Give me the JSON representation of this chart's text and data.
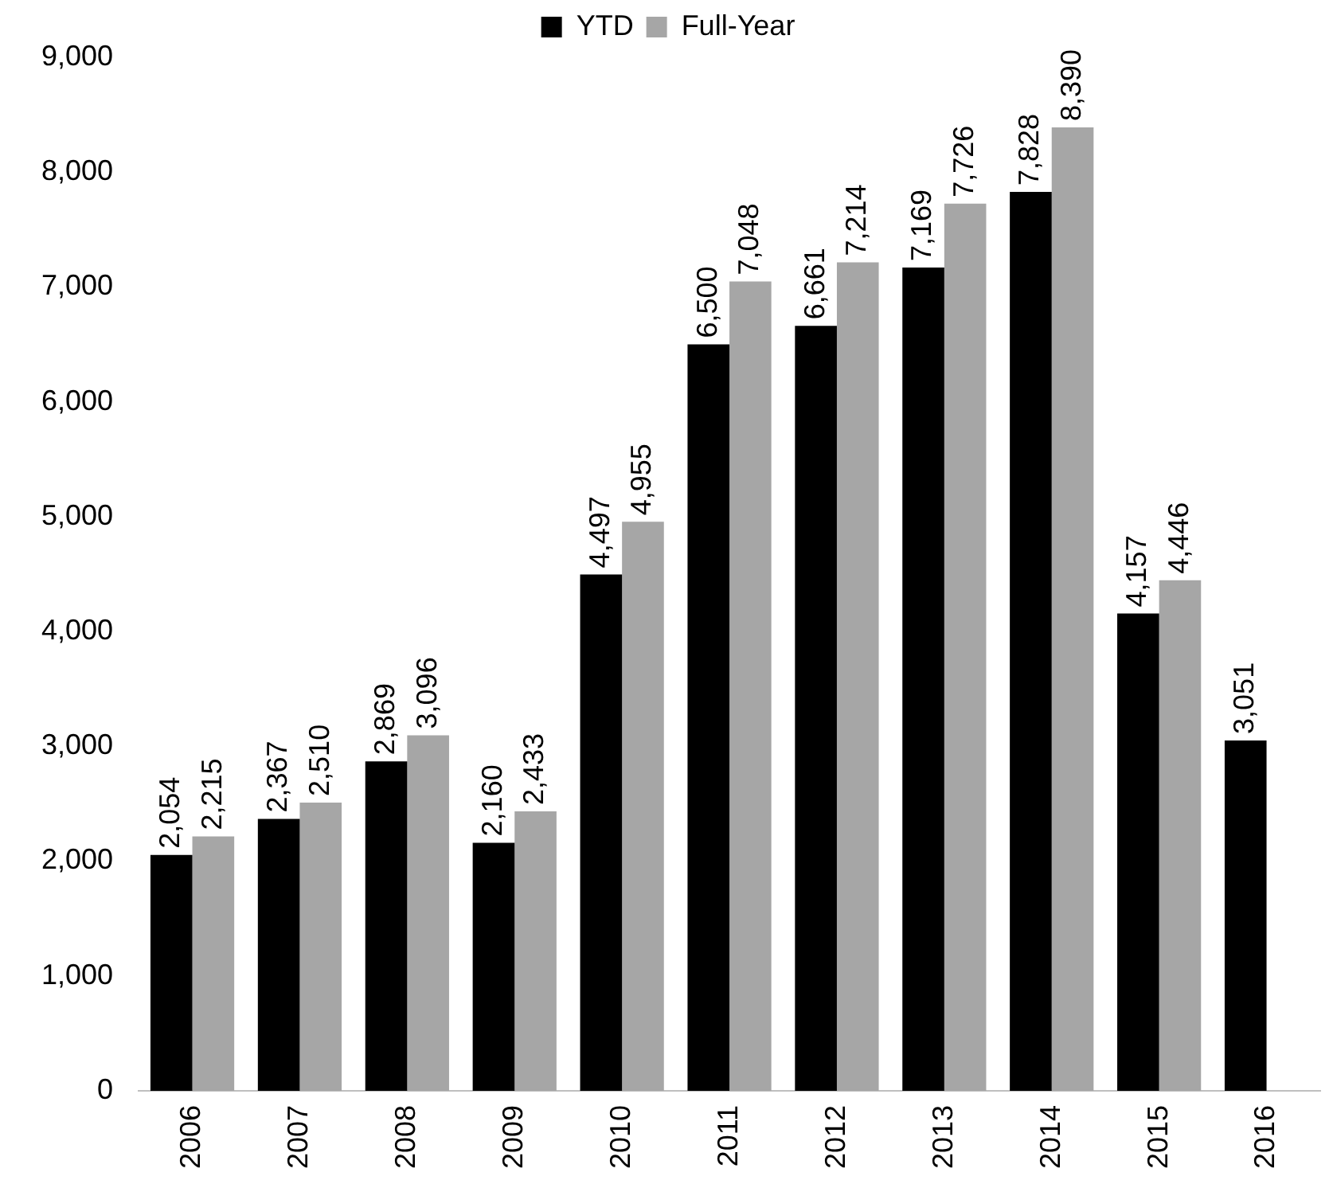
{
  "chart_data": {
    "type": "bar",
    "categories": [
      "2006",
      "2007",
      "2008",
      "2009",
      "2010",
      "2011",
      "2012",
      "2013",
      "2014",
      "2015",
      "2016"
    ],
    "series": [
      {
        "name": "YTD",
        "color": "#000000",
        "values": [
          2054,
          2367,
          2869,
          2160,
          4497,
          6500,
          6661,
          7169,
          7828,
          4157,
          3051
        ],
        "value_labels": [
          "2,054",
          "2,367",
          "2,869",
          "2,160",
          "4,497",
          "6,500",
          "6,661",
          "7,169",
          "7,828",
          "4,157",
          "3,051"
        ]
      },
      {
        "name": "Full-Year",
        "color": "#a6a6a6",
        "values": [
          2215,
          2510,
          3096,
          2433,
          4955,
          7048,
          7214,
          7726,
          8390,
          4446,
          null
        ],
        "value_labels": [
          "2,215",
          "2,510",
          "3,096",
          "2,433",
          "4,955",
          "7,048",
          "7,214",
          "7,726",
          "8,390",
          "4,446",
          null
        ]
      }
    ],
    "ylim": [
      0,
      9000
    ],
    "yticks": [
      0,
      {
        "value": 1000,
        "label": "1,000"
      },
      {
        "value": 2000,
        "label": "2,000"
      },
      {
        "value": 3000,
        "label": "3,000"
      },
      {
        "value": 4000,
        "label": "4,000"
      },
      {
        "value": 5000,
        "label": "5,000"
      },
      {
        "value": 6000,
        "label": "6,000"
      },
      {
        "value": 7000,
        "label": "7,000"
      },
      {
        "value": 8000,
        "label": "8,000"
      },
      {
        "value": 9000,
        "label": "9,000"
      }
    ],
    "grid": false,
    "legend": "top"
  }
}
